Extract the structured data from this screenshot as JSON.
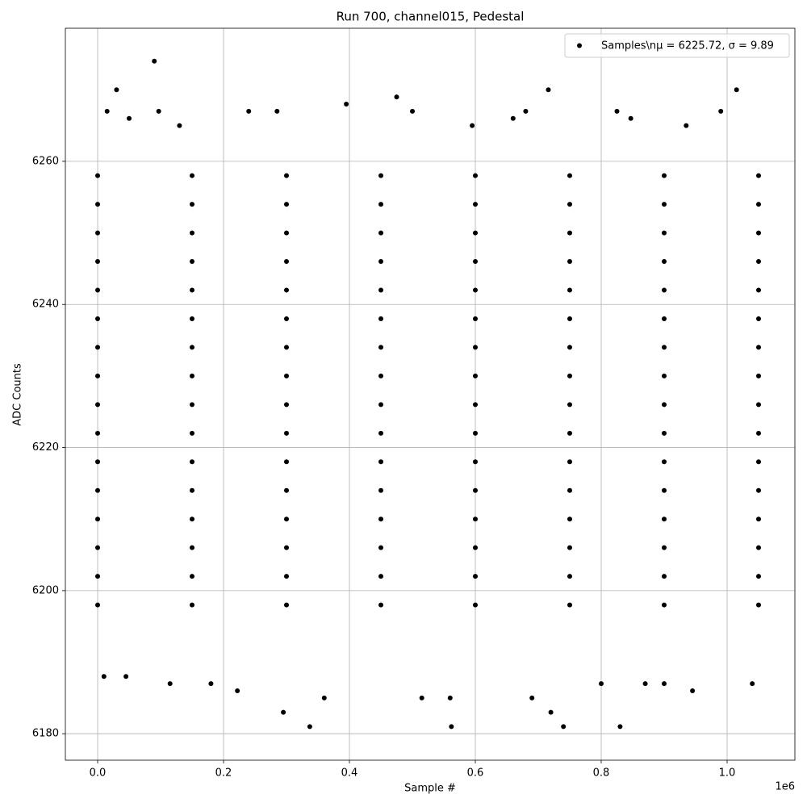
{
  "chart_data": {
    "type": "scatter",
    "title": "Run 700, channel015, Pedestal",
    "x_label": "Sample #",
    "y_label": "ADC Counts",
    "x_offset_label": "1e6",
    "xlim": [
      -0.0513,
      1.1077
    ],
    "ylim": [
      6176.3,
      6278.6
    ],
    "xticks": [
      {
        "value": 0,
        "label": "0.0"
      },
      {
        "value": 0.2,
        "label": "0.2"
      },
      {
        "value": 0.4,
        "label": "0.4"
      },
      {
        "value": 0.6,
        "label": "0.6"
      },
      {
        "value": 0.8,
        "label": "0.8"
      },
      {
        "value": 1,
        "label": "1.0"
      }
    ],
    "yticks": [
      6180,
      6200,
      6220,
      6240,
      6260
    ],
    "grid": true,
    "legend": "upper right",
    "series": [
      {
        "name": "Samples\\nμ = 6225.72, σ = 9.89",
        "color": "#000000",
        "x": [
          0.09,
          0.03,
          0.716,
          1.015,
          0.475,
          0.395,
          0.015,
          0.097,
          0.24,
          0.285,
          0.5,
          0.68,
          0.825,
          0.99,
          0.66,
          0.847,
          0.05,
          0.935,
          0.13,
          0.595,
          0.337,
          0.562,
          0.74,
          0.83,
          0.295,
          0.72,
          0.945,
          0.222,
          0.36,
          0.515,
          0.56,
          0.69,
          0.01,
          0.045,
          0.115,
          0.18,
          0.9,
          1.04,
          0.87,
          0.8,
          0,
          0.15,
          0.3,
          0.45,
          0.6,
          0.75,
          0.9,
          1.05,
          0,
          0.15,
          0.3,
          0.45,
          0.6,
          0.75,
          0.9,
          1.05,
          0,
          0.15,
          0.3,
          0.45,
          0.6,
          0.75,
          0.9,
          1.05,
          0,
          0.15,
          0.3,
          0.45,
          0.6,
          0.75,
          0.9,
          1.05,
          0,
          0.15,
          0.3,
          0.45,
          0.6,
          0.75,
          0.9,
          1.05,
          0,
          0.15,
          0.3,
          0.45,
          0.6,
          0.75,
          0.9,
          1.05,
          0,
          0.15,
          0.3,
          0.45,
          0.6,
          0.75,
          0.9,
          1.05,
          0,
          0.15,
          0.3,
          0.45,
          0.6,
          0.75,
          0.9,
          1.05,
          0,
          0.15,
          0.3,
          0.45,
          0.6,
          0.75,
          0.9,
          1.05,
          0,
          0.15,
          0.3,
          0.45,
          0.6,
          0.75,
          0.9,
          1.05,
          0,
          0.15,
          0.3,
          0.45,
          0.6,
          0.75,
          0.9,
          1.05,
          0,
          0.15,
          0.3,
          0.45,
          0.6,
          0.75,
          0.9,
          1.05,
          0,
          0.15,
          0.3,
          0.45,
          0.6,
          0.75,
          0.9,
          1.05,
          0,
          0.15,
          0.3,
          0.45,
          0.6,
          0.75,
          0.9,
          1.05,
          0,
          0.15,
          0.3,
          0.45,
          0.6,
          0.75,
          0.9,
          1.05,
          0,
          0.15,
          0.3,
          0.45,
          0.6,
          0.75,
          0.9,
          1.05
        ],
        "values": [
          6274,
          6270,
          6270,
          6270,
          6269,
          6268,
          6267,
          6267,
          6267,
          6267,
          6267,
          6267,
          6267,
          6267,
          6266,
          6266,
          6266,
          6265,
          6265,
          6265,
          6181,
          6181,
          6181,
          6181,
          6183,
          6183,
          6186,
          6186,
          6185,
          6185,
          6185,
          6185,
          6188,
          6188,
          6187,
          6187,
          6187,
          6187,
          6187,
          6187,
          6198,
          6198,
          6198,
          6198,
          6198,
          6198,
          6198,
          6198,
          6202,
          6202,
          6202,
          6202,
          6202,
          6202,
          6202,
          6202,
          6206,
          6206,
          6206,
          6206,
          6206,
          6206,
          6206,
          6206,
          6210,
          6210,
          6210,
          6210,
          6210,
          6210,
          6210,
          6210,
          6214,
          6214,
          6214,
          6214,
          6214,
          6214,
          6214,
          6214,
          6218,
          6218,
          6218,
          6218,
          6218,
          6218,
          6218,
          6218,
          6222,
          6222,
          6222,
          6222,
          6222,
          6222,
          6222,
          6222,
          6226,
          6226,
          6226,
          6226,
          6226,
          6226,
          6226,
          6226,
          6230,
          6230,
          6230,
          6230,
          6230,
          6230,
          6230,
          6230,
          6234,
          6234,
          6234,
          6234,
          6234,
          6234,
          6234,
          6234,
          6238,
          6238,
          6238,
          6238,
          6238,
          6238,
          6238,
          6238,
          6242,
          6242,
          6242,
          6242,
          6242,
          6242,
          6242,
          6242,
          6246,
          6246,
          6246,
          6246,
          6246,
          6246,
          6246,
          6246,
          6250,
          6250,
          6250,
          6250,
          6250,
          6250,
          6250,
          6250,
          6254,
          6254,
          6254,
          6254,
          6254,
          6254,
          6254,
          6254,
          6258,
          6258,
          6258,
          6258,
          6258,
          6258,
          6258,
          6258
        ]
      }
    ]
  }
}
